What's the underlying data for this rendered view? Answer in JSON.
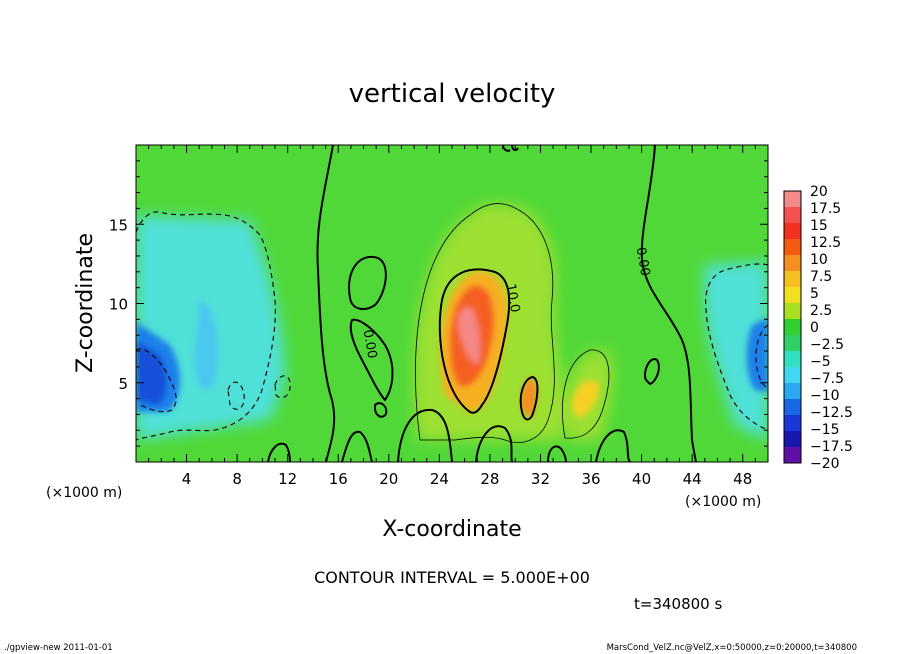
{
  "chart_data": {
    "type": "heatmap",
    "title": "vertical velocity",
    "xlabel": "X-coordinate",
    "ylabel": "Z-coordinate",
    "x_unit_left": "(×1000 m)",
    "x_unit_right": "(×1000 m)",
    "xlim": [
      0,
      50
    ],
    "ylim": [
      0,
      20
    ],
    "x_ticks": [
      4,
      8,
      12,
      16,
      20,
      24,
      28,
      32,
      36,
      40,
      44,
      48
    ],
    "y_ticks": [
      5,
      10,
      15
    ],
    "contour_interval_text": "CONTOUR INTERVAL = 5.000E+00",
    "time_text": "t=340800 s",
    "contour_labels": [
      {
        "text": "10.0",
        "x": 29.5,
        "z": 10.3
      },
      {
        "text": "0.00",
        "x": 18.2,
        "z": 7.4
      },
      {
        "text": "0.00",
        "x": 39.8,
        "z": 12.6
      }
    ],
    "colorbar": {
      "labels": [
        "20",
        "17.5",
        "15",
        "12.5",
        "10",
        "7.5",
        "5",
        "2.5",
        "0",
        "-2.5",
        "-5",
        "-7.5",
        "-10",
        "-12.5",
        "-15",
        "-17.5",
        "-20"
      ],
      "values": [
        20,
        17.5,
        15,
        12.5,
        10,
        7.5,
        5,
        2.5,
        0,
        -2.5,
        -5,
        -7.5,
        -10,
        -12.5,
        -15,
        -17.5,
        -20
      ],
      "colors": [
        "#f48a8a",
        "#f45050",
        "#f43020",
        "#f55a10",
        "#f59020",
        "#f5c020",
        "#f0e020",
        "#a8e020",
        "#30d030",
        "#30d068",
        "#30e0c0",
        "#40d8f0",
        "#2aa8f0",
        "#1868e8",
        "#1a38d8",
        "#1818b0",
        "#6010a8"
      ]
    },
    "features": [
      {
        "kind": "updraft",
        "x": 26.5,
        "z": 8.2,
        "peak": 16
      },
      {
        "kind": "updraft",
        "x": 31.2,
        "z": 4.3,
        "peak": 9
      },
      {
        "kind": "updraft",
        "x": 35.0,
        "z": 4.5,
        "peak": 5
      },
      {
        "kind": "downdraft",
        "x": 1.5,
        "z": 5.0,
        "peak": -11
      },
      {
        "kind": "downdraft",
        "x": 49.5,
        "z": 7.5,
        "peak": -10
      }
    ]
  },
  "footer": {
    "left": "./gpview-new  2011-01-01",
    "right": "MarsCond_VelZ.nc@VelZ,x=0:50000,z=0:20000,t=340800"
  }
}
